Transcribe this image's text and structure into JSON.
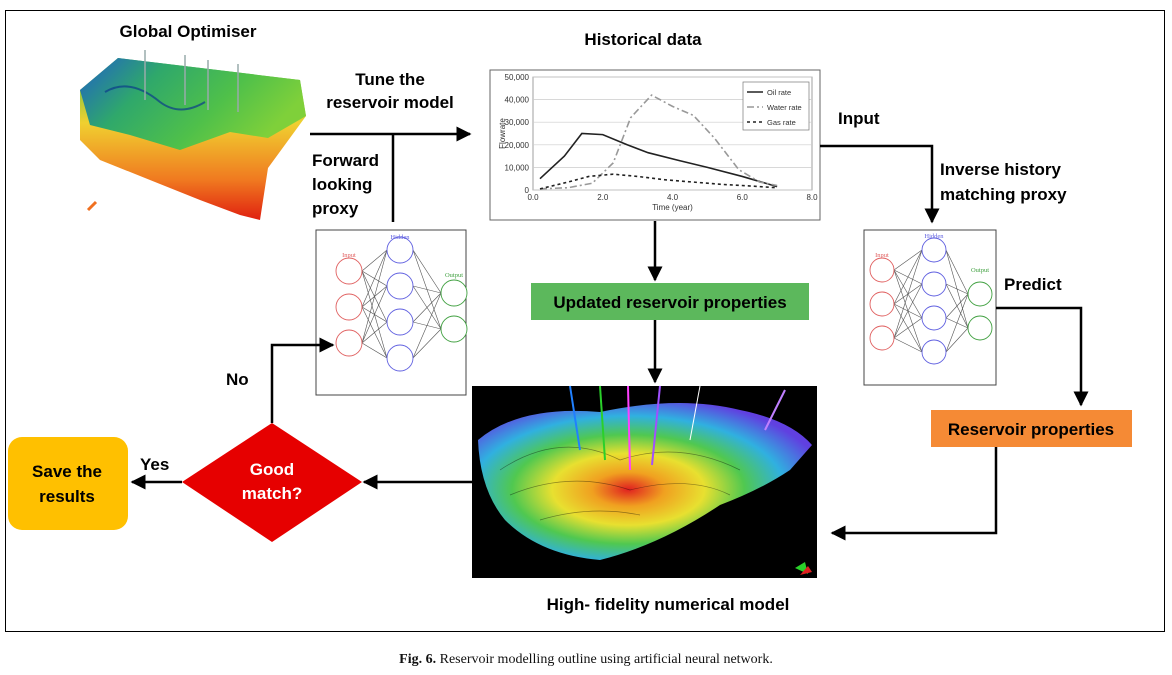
{
  "labels": {
    "global_optimiser": "Global Optimiser",
    "tune_line1": "Tune the",
    "tune_line2": "reservoir model",
    "forward_line1": "Forward",
    "forward_line2": "looking",
    "forward_line3": "proxy",
    "historical_data": "Historical data",
    "input": "Input",
    "inverse_line1": "Inverse history",
    "inverse_line2": "matching proxy",
    "predict": "Predict",
    "updated_props": "Updated reservoir properties",
    "reservoir_props": "Reservoir properties",
    "hifi_model": "High- fidelity numerical model",
    "good_line1": "Good",
    "good_line2": "match?",
    "yes": "Yes",
    "no": "No",
    "save_line1": "Save the",
    "save_line2": "results"
  },
  "nn": {
    "input_label": "Input",
    "hidden_label": "Hidden",
    "output_label": "Output"
  },
  "caption": {
    "fig": "Fig. 6.",
    "text": "Reservoir modelling outline using artificial neural network."
  },
  "colors": {
    "green_box": "#5cb85c",
    "orange_box": "#f58a35",
    "red_diamond": "#e60000",
    "save_box": "#ffc000"
  },
  "chart_data": {
    "type": "line",
    "xlabel": "Time (year)",
    "ylabel": "Flowrate",
    "xlim": [
      0,
      8
    ],
    "ylim": [
      0,
      50000
    ],
    "xticks": [
      "0.0",
      "2.0",
      "4.0",
      "6.0",
      "8.0"
    ],
    "yticks": [
      "0",
      "10,000",
      "20,000",
      "30,000",
      "40,000",
      "50,000"
    ],
    "legend_position": "top-right",
    "grid": true,
    "series": [
      {
        "name": "Oil rate",
        "x": [
          0.2,
          0.9,
          1.4,
          2.0,
          2.7,
          3.3,
          4.2,
          5.0,
          6.0,
          7.0
        ],
        "y": [
          5000,
          15000,
          25000,
          24500,
          20000,
          16500,
          13000,
          10000,
          6000,
          1500
        ]
      },
      {
        "name": "Water rate",
        "x": [
          0.2,
          1.0,
          1.7,
          2.3,
          2.8,
          3.4,
          4.0,
          4.6,
          5.2,
          5.9,
          6.5,
          7.0
        ],
        "y": [
          500,
          1000,
          3000,
          12000,
          32000,
          42000,
          37000,
          33000,
          23000,
          9000,
          3500,
          2000
        ]
      },
      {
        "name": "Gas rate",
        "x": [
          0.2,
          1.0,
          1.6,
          2.3,
          3.0,
          3.8,
          4.6,
          5.4,
          6.2,
          7.0
        ],
        "y": [
          500,
          3500,
          6000,
          7000,
          6000,
          4500,
          3500,
          2500,
          1800,
          1000
        ]
      }
    ]
  }
}
